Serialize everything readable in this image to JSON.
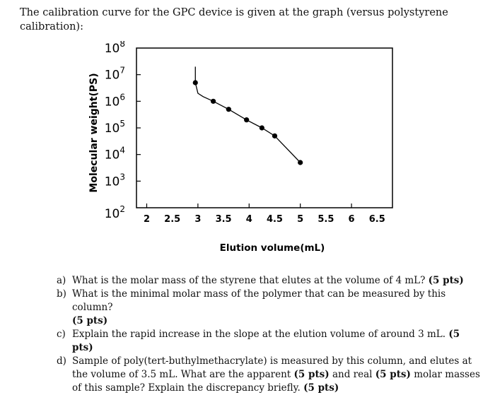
{
  "intro": "The calibration curve for the GPC device is given at the graph (versus polystyrene calibration):",
  "chart_data": {
    "type": "line",
    "title": "",
    "xlabel": "Elution volume(mL)",
    "ylabel": "Molecular weight(PS)",
    "x_ticks": [
      "2",
      "2.5",
      "3",
      "3.5",
      "4",
      "4.5",
      "5",
      "5.5",
      "6",
      "6.5"
    ],
    "y_ticks": [
      {
        "base": "10",
        "exp": "2",
        "value": 100
      },
      {
        "base": "10",
        "exp": "3",
        "value": 1000
      },
      {
        "base": "10",
        "exp": "4",
        "value": 10000
      },
      {
        "base": "10",
        "exp": "5",
        "value": 100000
      },
      {
        "base": "10",
        "exp": "6",
        "value": 1000000
      },
      {
        "base": "10",
        "exp": "7",
        "value": 10000000
      },
      {
        "base": "10",
        "exp": "8",
        "value": 100000000
      }
    ],
    "xlim": [
      1.8,
      6.8
    ],
    "ylim": [
      100,
      100000000
    ],
    "yscale": "log",
    "grid": false,
    "series": [
      {
        "color": "#000000",
        "x": [
          2.95,
          2.95,
          3.0,
          3.1,
          3.3,
          3.6,
          3.95,
          4.25,
          4.5,
          5.0
        ],
        "y": [
          20000000,
          5000000,
          2000000,
          1500000,
          1000000,
          500000,
          200000,
          100000,
          50000,
          5000
        ],
        "markers": [
          false,
          true,
          false,
          false,
          true,
          true,
          true,
          true,
          true,
          true
        ]
      }
    ]
  },
  "questions": [
    {
      "letter": "a)",
      "text": "What is the molar mass of the styrene that elutes at the volume of 4 mL?",
      "pts": "(5 pts)"
    },
    {
      "letter": "b)",
      "text": "What is the minimal molar mass of the polymer that can be measured by this column?",
      "pts": "(5 pts)"
    },
    {
      "letter": "c)",
      "text": "Explain the rapid increase in the slope at the elution volume of around 3 mL.",
      "pts": "(5 pts)"
    },
    {
      "letter": "d)",
      "text_1": "Sample of poly(tert-buthylmethacrylate) is measured by this column, and elutes at the volume of 3.5 mL. What are the apparent",
      "pts_1": "(5 pts)",
      "text_2": "and real",
      "pts_2": "(5 pts)",
      "text_3": "molar masses of this sample? Explain the discrepancy briefly.",
      "pts_3": "(5 pts)"
    }
  ]
}
